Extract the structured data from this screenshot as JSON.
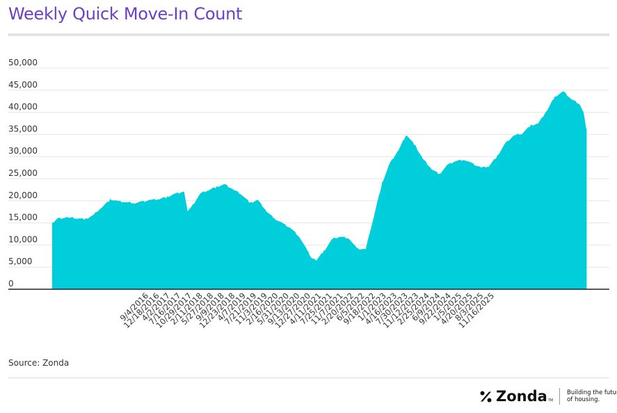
{
  "title": "Weekly Quick Move-In Count",
  "source": "Source: Zonda",
  "brand": {
    "name": "Zonda",
    "tm": "TM",
    "tagline": "Building the future of housing."
  },
  "colors": {
    "title": "#6b3fc8",
    "area": "#00cedb",
    "rule": "#e3e3e3",
    "grid": "#e6e6e6",
    "axis": "#222222"
  },
  "chart_data": {
    "type": "area",
    "title": "Weekly Quick Move-In Count",
    "xlabel": "",
    "ylabel": "",
    "ylim": [
      0,
      50000
    ],
    "yticks": [
      0,
      5000,
      10000,
      15000,
      20000,
      25000,
      30000,
      35000,
      40000,
      45000,
      50000
    ],
    "ytick_labels": [
      "0",
      "5,000",
      "10,000",
      "15,000",
      "20,000",
      "25,000",
      "30,000",
      "35,000",
      "40,000",
      "45,000",
      "50,000"
    ],
    "x_start": "2016-09-04",
    "x_end": "2026-01-04",
    "xtick_labels": [
      "9/4/2016",
      "12/18/2016",
      "4/2/2017",
      "7/16/2017",
      "10/29/2017",
      "2/11/2018",
      "5/27/2018",
      "9/9/2018",
      "12/23/2018",
      "4/7/2019",
      "7/21/2019",
      "11/3/2019",
      "2/16/2020",
      "5/31/2020",
      "9/13/2020",
      "12/27/2020",
      "4/11/2021",
      "7/25/2021",
      "11/7/2021",
      "2/20/2022",
      "6/5/2022",
      "9/18/2022",
      "1/1/2023",
      "4/16/2023",
      "7/30/2023",
      "11/12/2023",
      "2/25/2024",
      "6/9/2024",
      "9/22/2024",
      "1/5/2025",
      "4/20/2025",
      "8/3/2025",
      "11/16/2025"
    ],
    "grid": true,
    "legend": "none",
    "series": [
      {
        "x": [
          "2016-09-04",
          "2016-10-09",
          "2016-12-18",
          "2017-02-05",
          "2017-04-02",
          "2017-05-21",
          "2017-07-16",
          "2017-09-10",
          "2017-10-29",
          "2017-12-17",
          "2018-02-11",
          "2018-04-01",
          "2018-05-27",
          "2018-07-15",
          "2018-09-09",
          "2018-10-28",
          "2018-12-23",
          "2019-01-13",
          "2019-02-10",
          "2019-04-07",
          "2019-05-26",
          "2019-07-21",
          "2019-09-08",
          "2019-11-03",
          "2019-12-22",
          "2020-02-16",
          "2020-04-05",
          "2020-05-31",
          "2020-07-19",
          "2020-09-13",
          "2020-11-01",
          "2020-12-27",
          "2021-02-14",
          "2021-03-14",
          "2021-04-11",
          "2021-05-30",
          "2021-07-25",
          "2021-09-12",
          "2021-11-07",
          "2021-12-26",
          "2022-02-20",
          "2022-04-10",
          "2022-06-05",
          "2022-07-24",
          "2022-09-18",
          "2022-11-06",
          "2023-01-01",
          "2023-02-19",
          "2023-04-16",
          "2023-06-04",
          "2023-07-30",
          "2023-09-17",
          "2023-11-12",
          "2023-12-31",
          "2024-02-25",
          "2024-04-14",
          "2024-06-09",
          "2024-07-28",
          "2024-09-22",
          "2024-11-10",
          "2025-01-05",
          "2025-02-23",
          "2025-04-20",
          "2025-06-08",
          "2025-08-03",
          "2025-09-21",
          "2025-11-16",
          "2025-12-07",
          "2025-12-28"
        ],
        "values": [
          15000,
          16000,
          16200,
          16100,
          15800,
          16700,
          18500,
          20300,
          19900,
          19700,
          19500,
          19800,
          20200,
          20400,
          20900,
          21600,
          22100,
          17800,
          18700,
          21700,
          22400,
          23200,
          23700,
          22500,
          21500,
          19500,
          20200,
          17600,
          16000,
          14800,
          13800,
          11800,
          8700,
          7000,
          6500,
          8600,
          11400,
          11900,
          11500,
          9200,
          9000,
          16000,
          24000,
          28500,
          31500,
          35000,
          32500,
          29500,
          27200,
          26000,
          28200,
          29000,
          29300,
          28400,
          27500,
          27800,
          30200,
          33000,
          34800,
          35200,
          37000,
          37500,
          40500,
          43500,
          44700,
          43000,
          41800,
          40000,
          36000
        ]
      }
    ]
  }
}
